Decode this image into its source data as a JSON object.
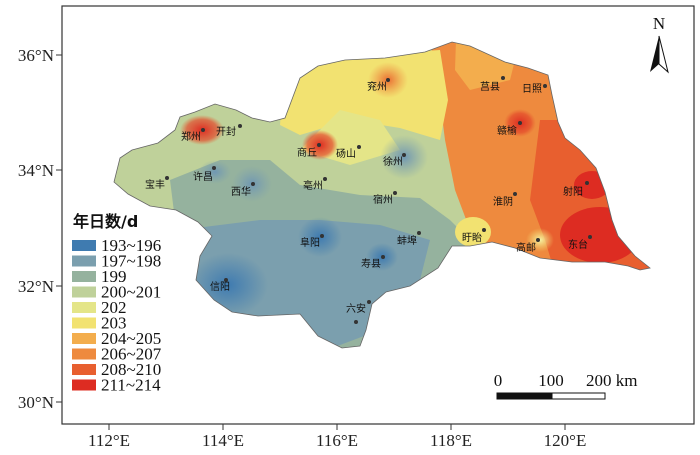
{
  "axes": {
    "x_ticks": [
      "112°E",
      "114°E",
      "116°E",
      "118°E",
      "120°E"
    ],
    "y_ticks": [
      "36°N",
      "34°N",
      "32°N",
      "30°N"
    ]
  },
  "north_arrow": {
    "label": "N",
    "icon": "north-arrow-icon"
  },
  "scale_bar": {
    "labels": [
      "0",
      "100",
      "200 km"
    ]
  },
  "legend": {
    "title": "年日数/d",
    "items": [
      {
        "label": "193~196",
        "color": "#3f7bb0"
      },
      {
        "label": "197~198",
        "color": "#7b9fae"
      },
      {
        "label": "199",
        "color": "#95b29e"
      },
      {
        "label": "200~201",
        "color": "#bfd19a"
      },
      {
        "label": "202",
        "color": "#e4e588"
      },
      {
        "label": "203",
        "color": "#f2e271"
      },
      {
        "label": "204~205",
        "color": "#f3ad4d"
      },
      {
        "label": "206~207",
        "color": "#ee8a3e"
      },
      {
        "label": "208~210",
        "color": "#e85f2f"
      },
      {
        "label": "211~214",
        "color": "#dd2c22"
      }
    ]
  },
  "cities": [
    {
      "name": "郑州"
    },
    {
      "name": "开封"
    },
    {
      "name": "商丘"
    },
    {
      "name": "砀山"
    },
    {
      "name": "兖州"
    },
    {
      "name": "莒县"
    },
    {
      "name": "日照"
    },
    {
      "name": "赣榆"
    },
    {
      "name": "徐州"
    },
    {
      "name": "许昌"
    },
    {
      "name": "西华"
    },
    {
      "name": "亳州"
    },
    {
      "name": "宝丰"
    },
    {
      "name": "宿州"
    },
    {
      "name": "淮阴"
    },
    {
      "name": "射阳"
    },
    {
      "name": "盱眙"
    },
    {
      "name": "蚌埠"
    },
    {
      "name": "阜阳"
    },
    {
      "name": "寿县"
    },
    {
      "name": "高邮"
    },
    {
      "name": "东台"
    },
    {
      "name": "信阳"
    },
    {
      "name": "六安"
    }
  ]
}
